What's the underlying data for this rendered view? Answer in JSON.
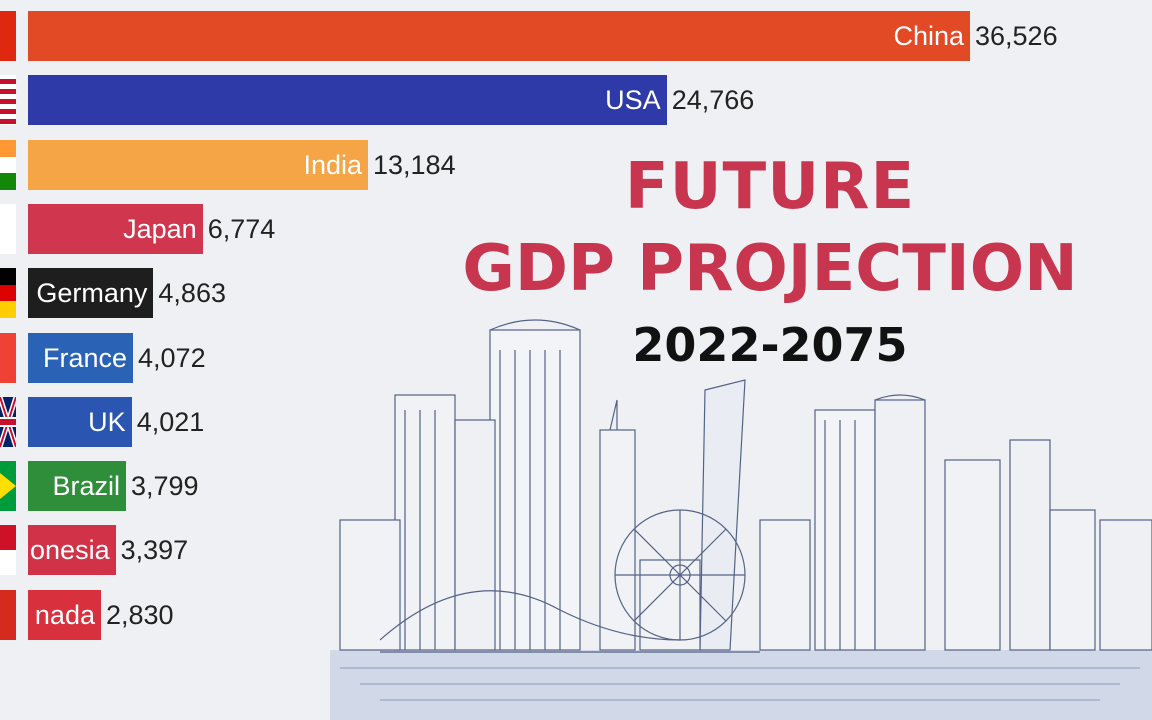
{
  "title": {
    "line1": "FUTURE",
    "line2": "GDP PROJECTION",
    "years": "2022-2075"
  },
  "chart_data": {
    "type": "bar",
    "orientation": "horizontal",
    "categories": [
      "China",
      "USA",
      "India",
      "Japan",
      "Germany",
      "France",
      "UK",
      "Brazil",
      "Indonesia",
      "Canada"
    ],
    "visible_labels": [
      "China",
      "USA",
      "India",
      "Japan",
      "Germany",
      "France",
      "UK",
      "Brazil",
      "onesia",
      "nada"
    ],
    "values": [
      36526,
      24766,
      13184,
      6774,
      4863,
      4072,
      4021,
      3799,
      3397,
      2830
    ],
    "value_labels": [
      "36,526",
      "24,766",
      "13,184",
      "6,774",
      "4,863",
      "4,072",
      "4,021",
      "3,799",
      "3,397",
      "2,830"
    ],
    "colors": [
      "#e24a26",
      "#2e3aa8",
      "#f5a446",
      "#d0364e",
      "#1e1e1e",
      "#2a63b5",
      "#2a55b0",
      "#2f8e3a",
      "#d23248",
      "#d8303c"
    ],
    "flags": [
      "china",
      "usa",
      "india",
      "japan",
      "germany",
      "france",
      "uk",
      "brazil",
      "indonesia",
      "canada"
    ],
    "xlim": [
      0,
      36526
    ],
    "grid": false,
    "legend": "none"
  }
}
